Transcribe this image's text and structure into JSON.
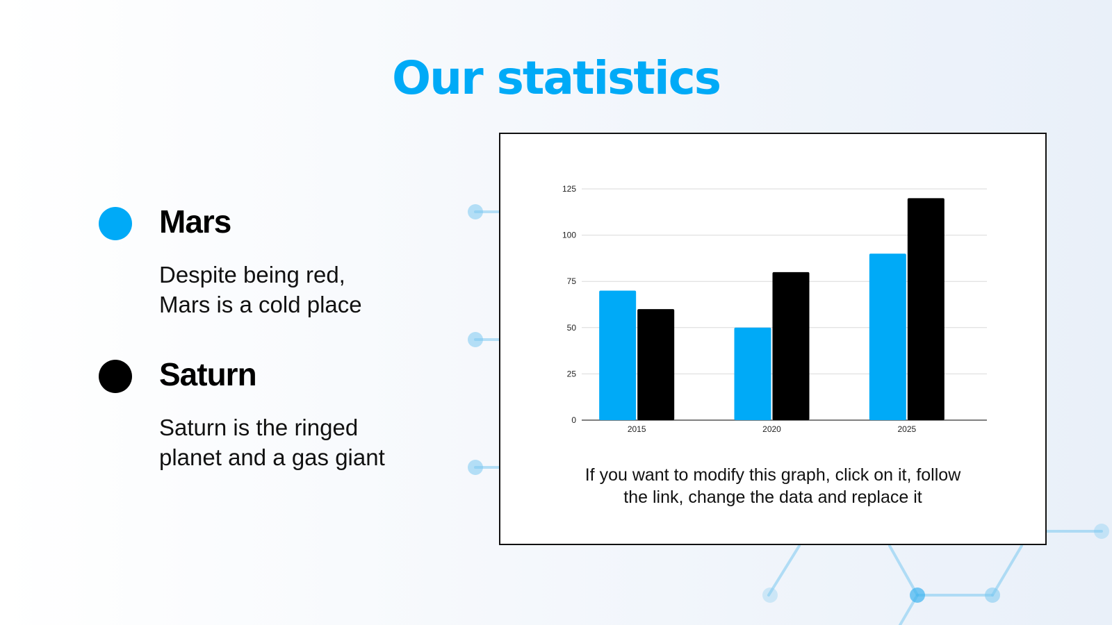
{
  "slide": {
    "title": "Our statistics",
    "caption_line1": "If you want to modify this graph, click on it, follow",
    "caption_line2": "the link, change the data and replace it"
  },
  "legend": [
    {
      "name": "Mars",
      "color": "#00aaf7",
      "desc_line1": "Despite being red,",
      "desc_line2": "Mars is a cold place"
    },
    {
      "name": "Saturn",
      "color": "#000000",
      "desc_line1": "Saturn is the ringed",
      "desc_line2": "planet and a gas giant"
    }
  ],
  "colors": {
    "accent": "#00aaf7",
    "dark": "#000000",
    "grid": "#d9d9d9",
    "decor": "#7cc8f0"
  },
  "chart_data": {
    "type": "bar",
    "title": "",
    "xlabel": "",
    "ylabel": "",
    "categories": [
      "2015",
      "2020",
      "2025"
    ],
    "series": [
      {
        "name": "Mars",
        "color": "#00aaf7",
        "values": [
          70,
          50,
          90
        ]
      },
      {
        "name": "Saturn",
        "color": "#000000",
        "values": [
          60,
          80,
          120
        ]
      }
    ],
    "yticks": [
      "0",
      "25",
      "50",
      "75",
      "100",
      "125"
    ],
    "ylim": [
      0,
      125
    ],
    "grid": true,
    "legend_position": "external (slide left side)"
  }
}
